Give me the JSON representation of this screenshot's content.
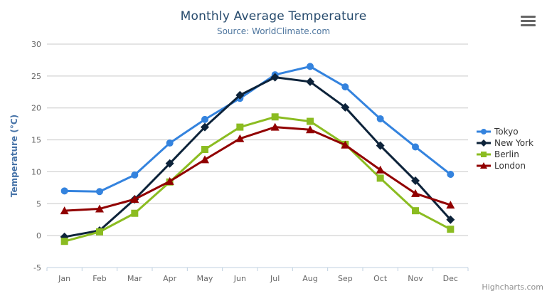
{
  "credits_label": "Highcharts.com",
  "export_menu": {
    "icon": "hamburger-icon"
  },
  "chart_data": {
    "type": "line",
    "title": "Monthly Average Temperature",
    "subtitle": "Source: WorldClimate.com",
    "xlabel": "",
    "ylabel": "Temperature (°C)",
    "categories": [
      "Jan",
      "Feb",
      "Mar",
      "Apr",
      "May",
      "Jun",
      "Jul",
      "Aug",
      "Sep",
      "Oct",
      "Nov",
      "Dec"
    ],
    "ylim": [
      -5,
      30
    ],
    "ytick_step": 5,
    "grid": true,
    "legend_position": "right",
    "series": [
      {
        "name": "Tokyo",
        "color": "#3483de",
        "marker": "circle",
        "values": [
          7.0,
          6.9,
          9.5,
          14.5,
          18.2,
          21.5,
          25.2,
          26.5,
          23.3,
          18.3,
          13.9,
          9.6
        ]
      },
      {
        "name": "New York",
        "color": "#0d233a",
        "marker": "diamond",
        "values": [
          -0.2,
          0.8,
          5.7,
          11.3,
          17.0,
          22.0,
          24.8,
          24.1,
          20.1,
          14.1,
          8.6,
          2.5
        ]
      },
      {
        "name": "Berlin",
        "color": "#8bbc21",
        "marker": "square",
        "values": [
          -0.9,
          0.6,
          3.5,
          8.4,
          13.5,
          17.0,
          18.6,
          17.9,
          14.3,
          9.0,
          3.9,
          1.0
        ]
      },
      {
        "name": "London",
        "color": "#910000",
        "marker": "triangle",
        "values": [
          3.9,
          4.2,
          5.7,
          8.5,
          11.9,
          15.2,
          17.0,
          16.6,
          14.2,
          10.3,
          6.6,
          4.8
        ]
      }
    ]
  }
}
